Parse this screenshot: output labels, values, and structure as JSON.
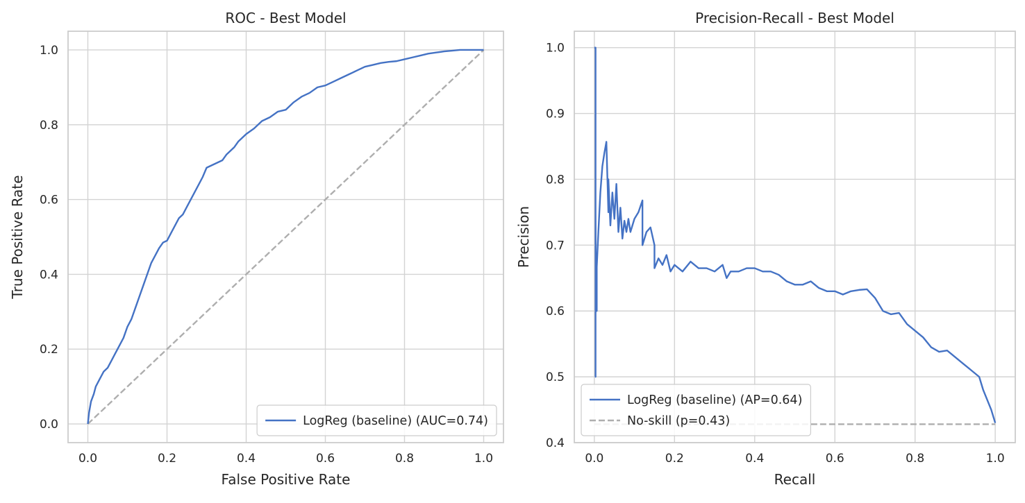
{
  "chart_data": [
    {
      "type": "line",
      "title": "ROC - Best Model",
      "xlabel": "False Positive Rate",
      "ylabel": "True Positive Rate",
      "xlim": [
        -0.05,
        1.05
      ],
      "ylim": [
        -0.05,
        1.05
      ],
      "xticks": [
        0.0,
        0.2,
        0.4,
        0.6,
        0.8,
        1.0
      ],
      "yticks": [
        0.0,
        0.2,
        0.4,
        0.6,
        0.8,
        1.0
      ],
      "xtick_labels": [
        "0.0",
        "0.2",
        "0.4",
        "0.6",
        "0.8",
        "1.0"
      ],
      "ytick_labels": [
        "0.0",
        "0.2",
        "0.4",
        "0.6",
        "0.8",
        "1.0"
      ],
      "grid": true,
      "legend_position": "lower-right",
      "series": [
        {
          "name": "LogReg (baseline) (AUC=0.74)",
          "color": "#4472C4",
          "style": "solid",
          "show_in_legend": true,
          "x": [
            0,
            0.003,
            0.008,
            0.015,
            0.02,
            0.03,
            0.04,
            0.05,
            0.06,
            0.07,
            0.08,
            0.09,
            0.1,
            0.11,
            0.12,
            0.13,
            0.14,
            0.15,
            0.16,
            0.17,
            0.18,
            0.19,
            0.2,
            0.21,
            0.22,
            0.23,
            0.24,
            0.25,
            0.26,
            0.27,
            0.28,
            0.29,
            0.3,
            0.32,
            0.34,
            0.35,
            0.36,
            0.37,
            0.38,
            0.39,
            0.4,
            0.42,
            0.44,
            0.46,
            0.48,
            0.5,
            0.52,
            0.54,
            0.56,
            0.58,
            0.6,
            0.62,
            0.64,
            0.66,
            0.68,
            0.7,
            0.72,
            0.74,
            0.76,
            0.78,
            0.8,
            0.82,
            0.84,
            0.86,
            0.88,
            0.9,
            0.92,
            0.94,
            0.96,
            0.98,
            1.0
          ],
          "y": [
            0,
            0.03,
            0.06,
            0.08,
            0.1,
            0.12,
            0.14,
            0.15,
            0.17,
            0.19,
            0.21,
            0.23,
            0.26,
            0.28,
            0.31,
            0.34,
            0.37,
            0.4,
            0.43,
            0.45,
            0.47,
            0.485,
            0.49,
            0.51,
            0.53,
            0.55,
            0.56,
            0.58,
            0.6,
            0.62,
            0.64,
            0.66,
            0.685,
            0.695,
            0.705,
            0.72,
            0.73,
            0.74,
            0.755,
            0.765,
            0.775,
            0.79,
            0.81,
            0.82,
            0.835,
            0.84,
            0.86,
            0.875,
            0.885,
            0.9,
            0.905,
            0.915,
            0.925,
            0.935,
            0.945,
            0.955,
            0.96,
            0.965,
            0.968,
            0.97,
            0.975,
            0.98,
            0.985,
            0.99,
            0.993,
            0.996,
            0.998,
            1.0,
            1.0,
            1.0,
            1.0
          ]
        },
        {
          "name": "",
          "color": "#AEAEAE",
          "style": "dashed",
          "show_in_legend": false,
          "x": [
            0,
            1
          ],
          "y": [
            0,
            1
          ]
        }
      ]
    },
    {
      "type": "line",
      "title": "Precision-Recall - Best Model",
      "xlabel": "Recall",
      "ylabel": "Precision",
      "xlim": [
        -0.05,
        1.05
      ],
      "ylim": [
        0.4,
        1.025
      ],
      "xticks": [
        0.0,
        0.2,
        0.4,
        0.6,
        0.8,
        1.0
      ],
      "yticks": [
        0.4,
        0.5,
        0.6,
        0.7,
        0.8,
        0.9,
        1.0
      ],
      "xtick_labels": [
        "0.0",
        "0.2",
        "0.4",
        "0.6",
        "0.8",
        "1.0"
      ],
      "ytick_labels": [
        "0.4",
        "0.5",
        "0.6",
        "0.7",
        "0.8",
        "0.9",
        "1.0"
      ],
      "grid": true,
      "legend_position": "lower-left",
      "series": [
        {
          "name": "LogReg (baseline) (AP=0.64)",
          "color": "#4472C4",
          "style": "solid",
          "show_in_legend": true,
          "x": [
            0.0,
            0.003,
            0.003,
            0.003,
            0.004,
            0.006,
            0.006,
            0.01,
            0.015,
            0.02,
            0.025,
            0.03,
            0.035,
            0.035,
            0.04,
            0.045,
            0.05,
            0.055,
            0.06,
            0.065,
            0.07,
            0.075,
            0.08,
            0.085,
            0.09,
            0.1,
            0.11,
            0.12,
            0.12,
            0.13,
            0.14,
            0.15,
            0.15,
            0.16,
            0.17,
            0.18,
            0.19,
            0.2,
            0.22,
            0.24,
            0.26,
            0.28,
            0.3,
            0.32,
            0.33,
            0.34,
            0.36,
            0.38,
            0.4,
            0.42,
            0.44,
            0.46,
            0.48,
            0.5,
            0.52,
            0.54,
            0.56,
            0.58,
            0.6,
            0.62,
            0.64,
            0.66,
            0.68,
            0.7,
            0.72,
            0.74,
            0.76,
            0.78,
            0.8,
            0.82,
            0.84,
            0.86,
            0.88,
            0.9,
            0.92,
            0.94,
            0.96,
            0.97,
            0.98,
            0.99,
            1.0
          ],
          "y": [
            1.0,
            1.0,
            0.5,
            0.75,
            0.6,
            0.6,
            0.667,
            0.72,
            0.78,
            0.82,
            0.84,
            0.857,
            0.75,
            0.8,
            0.73,
            0.78,
            0.74,
            0.793,
            0.72,
            0.757,
            0.71,
            0.737,
            0.72,
            0.74,
            0.72,
            0.74,
            0.75,
            0.768,
            0.7,
            0.72,
            0.727,
            0.7,
            0.665,
            0.68,
            0.67,
            0.685,
            0.66,
            0.67,
            0.66,
            0.675,
            0.665,
            0.665,
            0.66,
            0.67,
            0.65,
            0.66,
            0.66,
            0.665,
            0.665,
            0.66,
            0.66,
            0.655,
            0.645,
            0.64,
            0.64,
            0.645,
            0.635,
            0.63,
            0.63,
            0.625,
            0.63,
            0.632,
            0.633,
            0.62,
            0.6,
            0.595,
            0.597,
            0.58,
            0.57,
            0.56,
            0.545,
            0.538,
            0.54,
            0.53,
            0.52,
            0.51,
            0.5,
            0.48,
            0.465,
            0.45,
            0.43
          ]
        },
        {
          "name": "No-skill (p=0.43)",
          "color": "#AEAEAE",
          "style": "dashed",
          "show_in_legend": true,
          "x": [
            0,
            1
          ],
          "y": [
            0.428,
            0.428
          ]
        }
      ]
    }
  ]
}
